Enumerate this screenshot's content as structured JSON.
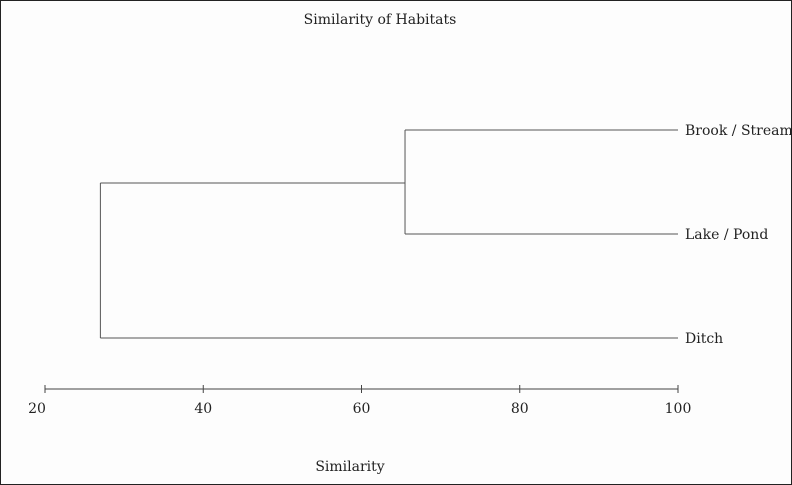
{
  "chart_data": {
    "type": "dendrogram",
    "title": "Similarity of Habitats",
    "xlabel": "Similarity",
    "xlim": [
      20,
      100
    ],
    "ticks": [
      20,
      40,
      60,
      80,
      100
    ],
    "tick_labels": [
      "20",
      "40",
      "60",
      "80",
      "100"
    ],
    "leaves": [
      {
        "id": "brook",
        "label": "Brook / Stream"
      },
      {
        "id": "lake",
        "label": "Lake / Pond"
      },
      {
        "id": "ditch",
        "label": "Ditch"
      }
    ],
    "merges": [
      {
        "children": [
          "brook",
          "lake"
        ],
        "similarity": 65.5
      },
      {
        "children": [
          "brook+lake",
          "ditch"
        ],
        "similarity": 27
      }
    ]
  }
}
